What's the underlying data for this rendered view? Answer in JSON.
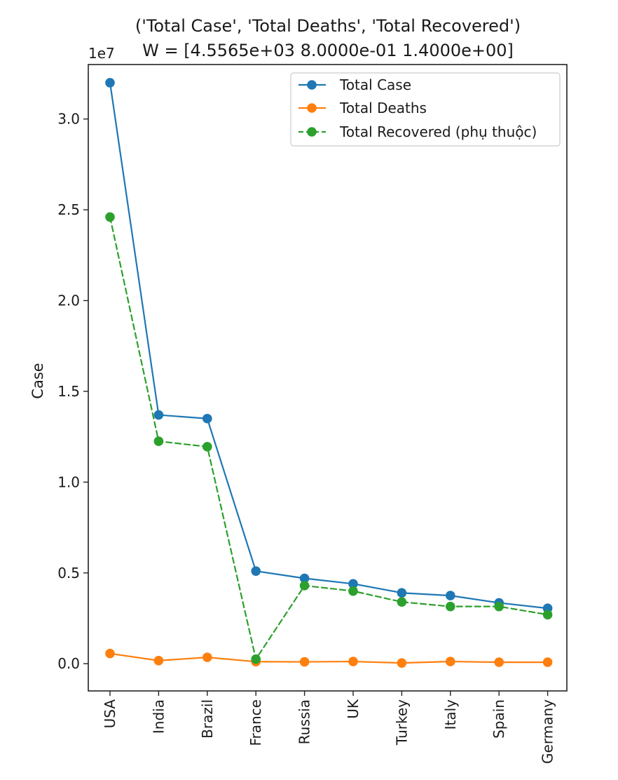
{
  "chart_data": {
    "type": "line",
    "title": "('Total Case', 'Total Deaths', 'Total Recovered')",
    "subtitle": "W = [4.5565e+03 8.0000e-01 1.4000e+00]",
    "xlabel": "",
    "ylabel": "Case",
    "y_offset_label": "1e7",
    "categories": [
      "USA",
      "India",
      "Brazil",
      "France",
      "Russia",
      "UK",
      "Turkey",
      "Italy",
      "Spain",
      "Germany"
    ],
    "ylim": [
      -1500000,
      33000000
    ],
    "yticks": [
      0,
      5000000,
      10000000,
      15000000,
      20000000,
      25000000,
      30000000
    ],
    "ytick_labels": [
      "0.0",
      "0.5",
      "1.0",
      "1.5",
      "2.0",
      "2.5",
      "3.0"
    ],
    "grid": false,
    "legend_position": "top-right",
    "series": [
      {
        "name": "Total Case",
        "color": "#1f77b4",
        "line_style": "solid",
        "marker": "circle",
        "values": [
          32000000,
          13700000,
          13500000,
          5100000,
          4700000,
          4400000,
          3900000,
          3750000,
          3350000,
          3050000
        ]
      },
      {
        "name": "Total Deaths",
        "color": "#ff7f0e",
        "line_style": "solid",
        "marker": "circle",
        "values": [
          560000,
          170000,
          350000,
          110000,
          100000,
          120000,
          40000,
          120000,
          80000,
          80000
        ]
      },
      {
        "name": "Total Recovered (phụ thuộc)",
        "color": "#2ca02c",
        "line_style": "dashed",
        "marker": "circle",
        "values": [
          24600000,
          12250000,
          11950000,
          250000,
          4300000,
          4000000,
          3400000,
          3150000,
          3150000,
          2700000
        ]
      }
    ]
  }
}
